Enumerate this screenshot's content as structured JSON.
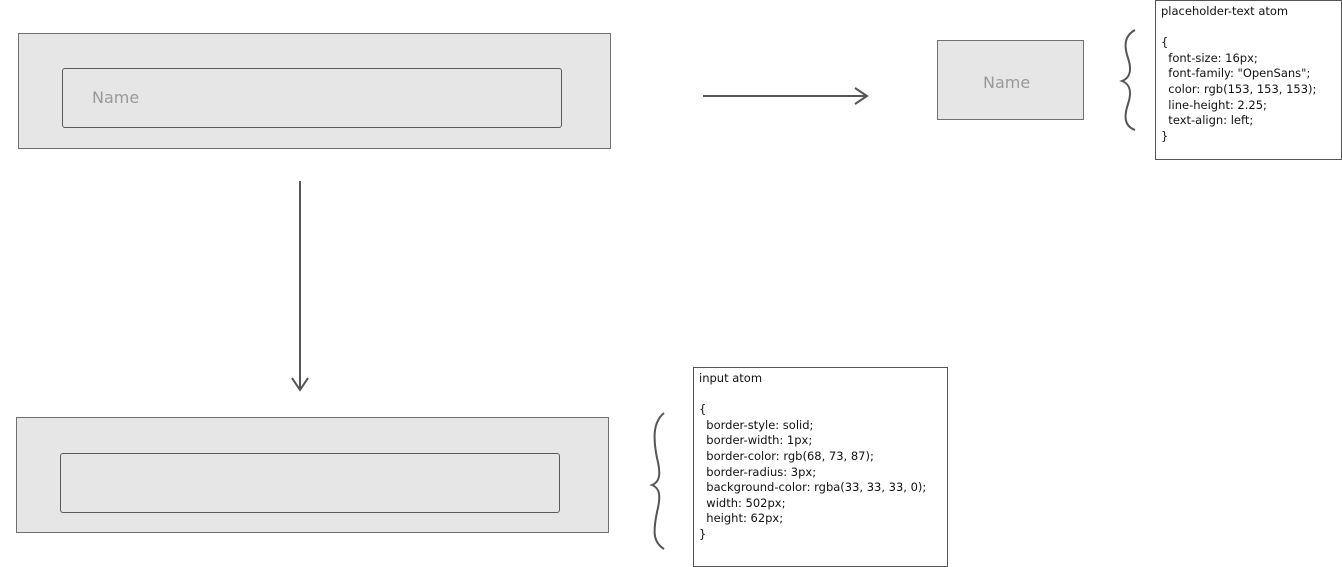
{
  "source_input": {
    "placeholder": "Name"
  },
  "placeholder_atom_preview": {
    "placeholder": "Name"
  },
  "placeholder_note": {
    "title": "placeholder-text atom",
    "lines": [
      "{",
      "  font-size: 16px;",
      "  font-family: \"OpenSans\";",
      "  color: rgb(153, 153, 153);",
      "  line-height: 2.25;",
      "  text-align: left;",
      "}"
    ]
  },
  "input_note": {
    "title": "input atom",
    "lines": [
      "{",
      "  border-style: solid;",
      "  border-width: 1px;",
      "  border-color: rgb(68, 73, 87);",
      "  border-radius: 3px;",
      "  background-color: rgba(33, 33, 33, 0);",
      "  width: 502px;",
      "  height: 62px;",
      "}"
    ]
  },
  "colors": {
    "panel_fill": "#e6e6e6",
    "panel_border": "#707070",
    "placeholder_text": "#999999",
    "arrow": "#555555"
  }
}
